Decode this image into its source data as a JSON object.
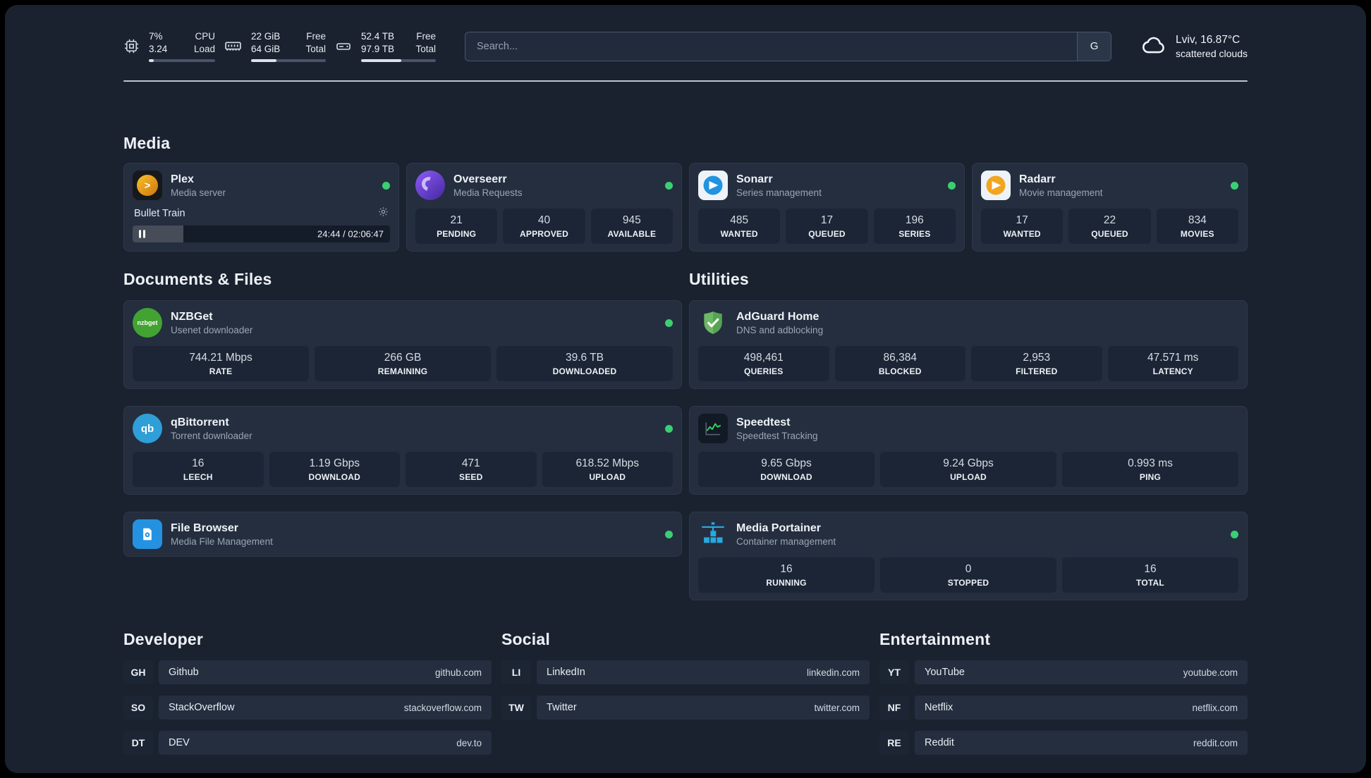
{
  "topbar": {
    "cpu": {
      "value": "7%",
      "load": "3.24",
      "label1": "CPU",
      "label2": "Load",
      "percent": 7
    },
    "ram": {
      "free": "22 GiB",
      "total": "64 GiB",
      "label1": "Free",
      "label2": "Total",
      "percent": 34
    },
    "disk": {
      "free": "52.4 TB",
      "total": "97.9 TB",
      "label1": "Free",
      "label2": "Total",
      "percent": 54
    },
    "search": {
      "placeholder": "Search...",
      "engine_label": "G"
    },
    "weather": {
      "location": "Lviv, 16.87°C",
      "condition": "scattered clouds"
    }
  },
  "media": {
    "title": "Media",
    "plex": {
      "name": "Plex",
      "subtitle": "Media server",
      "now_playing": "Bullet Train",
      "time": "24:44 / 02:06:47",
      "progress_percent": 19.6,
      "icon_glyph": ">"
    },
    "overseerr": {
      "name": "Overseerr",
      "subtitle": "Media Requests",
      "stats": [
        {
          "value": "21",
          "label": "PENDING"
        },
        {
          "value": "40",
          "label": "APPROVED"
        },
        {
          "value": "945",
          "label": "AVAILABLE"
        }
      ]
    },
    "sonarr": {
      "name": "Sonarr",
      "subtitle": "Series management",
      "stats": [
        {
          "value": "485",
          "label": "WANTED"
        },
        {
          "value": "17",
          "label": "QUEUED"
        },
        {
          "value": "196",
          "label": "SERIES"
        }
      ]
    },
    "radarr": {
      "name": "Radarr",
      "subtitle": "Movie management",
      "stats": [
        {
          "value": "17",
          "label": "WANTED"
        },
        {
          "value": "22",
          "label": "QUEUED"
        },
        {
          "value": "834",
          "label": "MOVIES"
        }
      ]
    }
  },
  "documents": {
    "title": "Documents & Files",
    "nzbget": {
      "name": "NZBGet",
      "subtitle": "Usenet downloader",
      "icon_text": "nzbget",
      "stats": [
        {
          "value": "744.21 Mbps",
          "label": "RATE"
        },
        {
          "value": "266 GB",
          "label": "REMAINING"
        },
        {
          "value": "39.6 TB",
          "label": "DOWNLOADED"
        }
      ]
    },
    "qbittorrent": {
      "name": "qBittorrent",
      "subtitle": "Torrent downloader",
      "icon_text": "qb",
      "stats": [
        {
          "value": "16",
          "label": "LEECH"
        },
        {
          "value": "1.19 Gbps",
          "label": "DOWNLOAD"
        },
        {
          "value": "471",
          "label": "SEED"
        },
        {
          "value": "618.52 Mbps",
          "label": "UPLOAD"
        }
      ]
    },
    "filebrowser": {
      "name": "File Browser",
      "subtitle": "Media File Management"
    }
  },
  "utilities": {
    "title": "Utilities",
    "adguard": {
      "name": "AdGuard Home",
      "subtitle": "DNS and adblocking",
      "stats": [
        {
          "value": "498,461",
          "label": "QUERIES"
        },
        {
          "value": "86,384",
          "label": "BLOCKED"
        },
        {
          "value": "2,953",
          "label": "FILTERED"
        },
        {
          "value": "47.571 ms",
          "label": "LATENCY"
        }
      ]
    },
    "speedtest": {
      "name": "Speedtest",
      "subtitle": "Speedtest Tracking",
      "stats": [
        {
          "value": "9.65 Gbps",
          "label": "DOWNLOAD"
        },
        {
          "value": "9.24 Gbps",
          "label": "UPLOAD"
        },
        {
          "value": "0.993 ms",
          "label": "PING"
        }
      ]
    },
    "portainer": {
      "name": "Media Portainer",
      "subtitle": "Container management",
      "stats": [
        {
          "value": "16",
          "label": "RUNNING"
        },
        {
          "value": "0",
          "label": "STOPPED"
        },
        {
          "value": "16",
          "label": "TOTAL"
        }
      ]
    }
  },
  "bookmarks": {
    "developer": {
      "title": "Developer",
      "items": [
        {
          "abbr": "GH",
          "name": "Github",
          "url": "github.com"
        },
        {
          "abbr": "SO",
          "name": "StackOverflow",
          "url": "stackoverflow.com"
        },
        {
          "abbr": "DT",
          "name": "DEV",
          "url": "dev.to"
        }
      ]
    },
    "social": {
      "title": "Social",
      "items": [
        {
          "abbr": "LI",
          "name": "LinkedIn",
          "url": "linkedin.com"
        },
        {
          "abbr": "TW",
          "name": "Twitter",
          "url": "twitter.com"
        }
      ]
    },
    "entertainment": {
      "title": "Entertainment",
      "items": [
        {
          "abbr": "YT",
          "name": "YouTube",
          "url": "youtube.com"
        },
        {
          "abbr": "NF",
          "name": "Netflix",
          "url": "netflix.com"
        },
        {
          "abbr": "RE",
          "name": "Reddit",
          "url": "reddit.com"
        }
      ]
    }
  }
}
